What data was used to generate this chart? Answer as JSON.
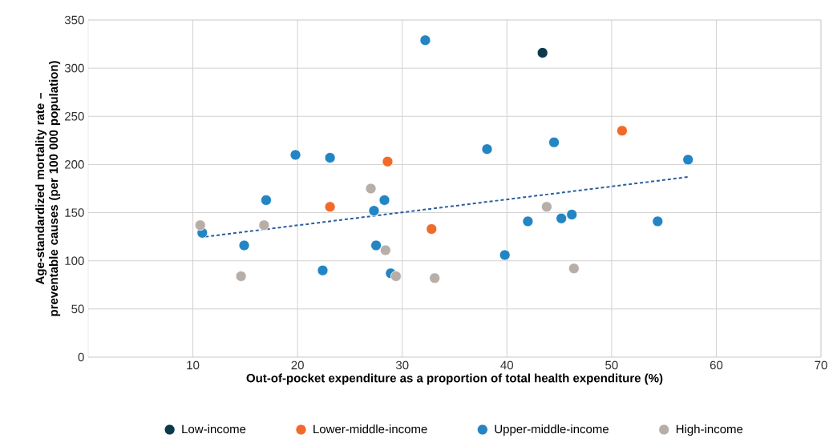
{
  "chart_data": {
    "type": "scatter",
    "xlabel": "Out-of-pocket expenditure as a proportion of total health expenditure (%)",
    "ylabel": "Age-standardized mortality rate – preventable causes (per 100 000 population)",
    "xlim": [
      0,
      70
    ],
    "xticks": [
      10,
      20,
      30,
      40,
      50,
      60,
      70
    ],
    "ylim": [
      0,
      350
    ],
    "yticks": [
      0,
      50,
      100,
      150,
      200,
      250,
      300,
      350
    ],
    "grid": true,
    "legend": "bottom",
    "series": [
      {
        "name": "Low-income",
        "color": "#0b3a4a",
        "marker": "circle",
        "x": [
          43.4
        ],
        "values": [
          316
        ]
      },
      {
        "name": "Lower-middle-income",
        "color": "#f26a2a",
        "marker": "circle",
        "x": [
          23.1,
          28.6,
          32.8,
          51.0
        ],
        "values": [
          156,
          203,
          133,
          235
        ]
      },
      {
        "name": "Upper-middle-income",
        "color": "#2385c4",
        "marker": "circle",
        "x": [
          10.9,
          14.9,
          17.0,
          19.8,
          22.4,
          23.1,
          27.3,
          28.3,
          27.5,
          28.9,
          32.2,
          38.1,
          39.8,
          42.0,
          44.5,
          45.2,
          46.2,
          54.4,
          57.3
        ],
        "values": [
          129,
          116,
          163,
          210,
          90,
          207,
          152,
          163,
          116,
          87,
          329,
          216,
          106,
          141,
          223,
          144,
          148,
          141,
          205
        ]
      },
      {
        "name": "High-income",
        "color": "#b8aea8",
        "marker": "circle",
        "x": [
          10.7,
          14.6,
          16.8,
          27.0,
          28.4,
          29.4,
          33.1,
          43.8,
          46.4
        ],
        "values": [
          137,
          84,
          137,
          175,
          111,
          84,
          82,
          156,
          92
        ]
      },
      {
        "type": "line",
        "color": "#2a5f9e",
        "line_style": "dashed",
        "marker": "none",
        "x": [
          11.2,
          57.3
        ],
        "values": [
          125,
          187
        ]
      }
    ]
  }
}
